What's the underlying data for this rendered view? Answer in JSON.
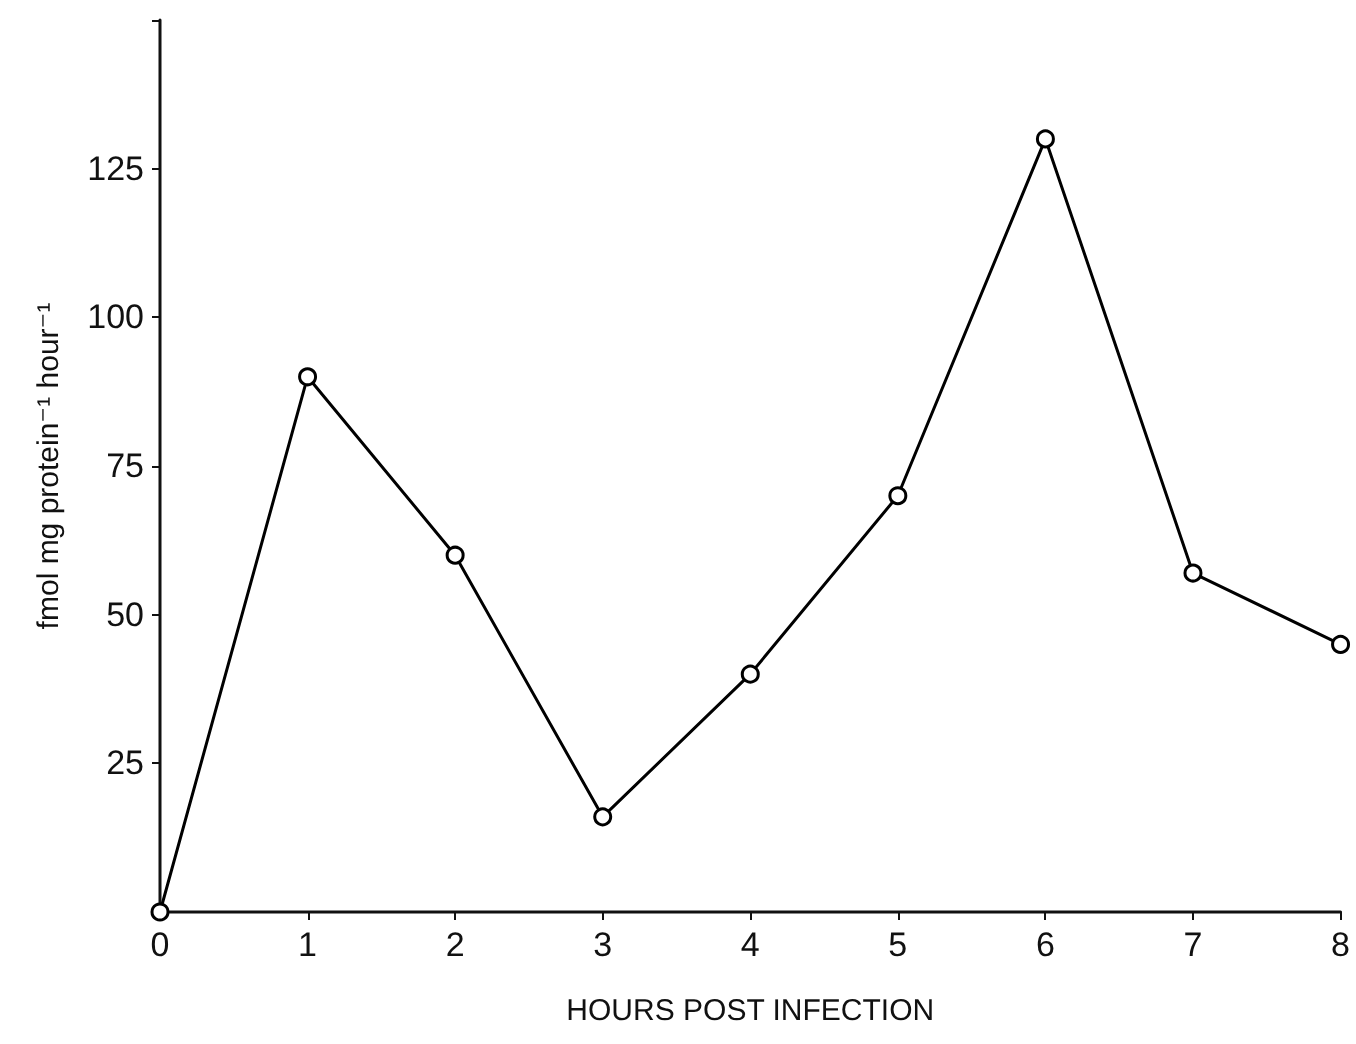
{
  "chart_data": {
    "type": "line",
    "xlabel": "HOURS POST INFECTION",
    "ylabel": "fmol mg protein⁻¹ hour⁻¹",
    "x": [
      0,
      1,
      2,
      3,
      4,
      5,
      6,
      7,
      8
    ],
    "series": [
      {
        "color": "#000000",
        "values": [
          0,
          90,
          60,
          16,
          40,
          70,
          130,
          57,
          45
        ]
      }
    ],
    "xlim": [
      0,
      8
    ],
    "xticks": [
      0,
      1,
      2,
      3,
      4,
      5,
      6,
      7,
      8
    ],
    "ylim": [
      0,
      150
    ],
    "yticks": [
      {
        "value": 0,
        "label": null
      },
      25,
      50,
      75,
      100,
      125,
      {
        "value": 150,
        "label": null
      }
    ],
    "grid": false,
    "marker": "circle",
    "line_style": "solid"
  }
}
